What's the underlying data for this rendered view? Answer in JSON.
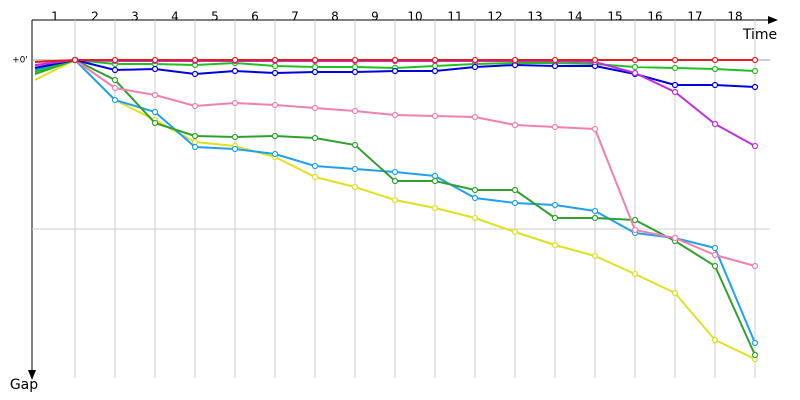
{
  "chart_data": {
    "type": "line",
    "x_axis_label": "Time",
    "y_axis_label": "Gap",
    "x": [
      0,
      1,
      2,
      3,
      4,
      5,
      6,
      7,
      8,
      9,
      10,
      11,
      12,
      13,
      14,
      15,
      16,
      17,
      18
    ],
    "xlim": [
      0,
      18.6
    ],
    "xticks": [
      {
        "value": 0.5,
        "label": "1"
      },
      {
        "value": 1.5,
        "label": "2"
      },
      {
        "value": 2.5,
        "label": "3"
      },
      {
        "value": 3.5,
        "label": "4"
      },
      {
        "value": 4.5,
        "label": "5"
      },
      {
        "value": 5.5,
        "label": "6"
      },
      {
        "value": 6.5,
        "label": "7"
      },
      {
        "value": 7.5,
        "label": "8"
      },
      {
        "value": 8.5,
        "label": "9"
      },
      {
        "value": 9.5,
        "label": "10"
      },
      {
        "value": 10.5,
        "label": "11"
      },
      {
        "value": 11.5,
        "label": "12"
      },
      {
        "value": 12.5,
        "label": "13"
      },
      {
        "value": 13.5,
        "label": "14"
      },
      {
        "value": 14.5,
        "label": "15"
      },
      {
        "value": 15.5,
        "label": "16"
      },
      {
        "value": 16.5,
        "label": "17"
      },
      {
        "value": 17.5,
        "label": "18"
      }
    ],
    "xgrid": [
      1,
      2,
      3,
      4,
      5,
      6,
      7,
      8,
      9,
      10,
      11,
      12,
      13,
      14,
      15,
      16,
      17,
      18
    ],
    "ylim": [
      0,
      315
    ],
    "y_inverted": true,
    "yticks": [
      {
        "value": 0,
        "label": "+0'"
      }
    ],
    "ygrid": [
      169
    ],
    "series": [
      {
        "name": "Yellow",
        "color": "#e0e020",
        "values": [
          20,
          0,
          40,
          60,
          82,
          86,
          97,
          117,
          127,
          140,
          148,
          158,
          172,
          185,
          196,
          214,
          233,
          280,
          299
        ]
      },
      {
        "name": "Light blue",
        "color": "#20a0f0",
        "values": [
          10,
          0,
          40,
          52,
          87,
          89,
          94,
          106,
          109,
          112,
          116,
          138,
          143,
          145,
          151,
          173,
          178,
          188,
          283
        ]
      },
      {
        "name": "Dark green",
        "color": "#30a030",
        "values": [
          14,
          0,
          20,
          63,
          76,
          77,
          76,
          78,
          85,
          121,
          121,
          130,
          130,
          158,
          158,
          160,
          181,
          206,
          295
        ]
      },
      {
        "name": "Pink",
        "color": "#f080b0",
        "values": [
          6,
          0,
          28,
          35,
          46,
          43,
          45,
          48,
          51,
          55,
          56,
          57,
          65,
          67,
          69,
          170,
          178,
          195,
          206
        ]
      },
      {
        "name": "Green",
        "color": "#20c020",
        "values": [
          12,
          0,
          4,
          4,
          5,
          3,
          6,
          7,
          7,
          8,
          6,
          4,
          3,
          3,
          4,
          7,
          8,
          9,
          11
        ]
      },
      {
        "name": "Blue",
        "color": "#0000e0",
        "values": [
          8,
          0,
          10,
          9,
          14,
          11,
          13,
          12,
          12,
          11,
          11,
          7,
          5,
          6,
          6,
          14,
          25,
          25,
          27
        ]
      },
      {
        "name": "Purple",
        "color": "#c030e0",
        "values": [
          5,
          0,
          1,
          1,
          1,
          1,
          1,
          1,
          1,
          1,
          1,
          1,
          1,
          1,
          2,
          13,
          32,
          64,
          86
        ]
      },
      {
        "name": "Red",
        "color": "#e02020",
        "values": [
          2,
          0,
          0,
          0,
          0,
          0,
          0,
          0,
          0,
          0,
          0,
          0,
          0,
          0,
          0,
          0,
          0,
          0,
          0
        ]
      }
    ]
  }
}
